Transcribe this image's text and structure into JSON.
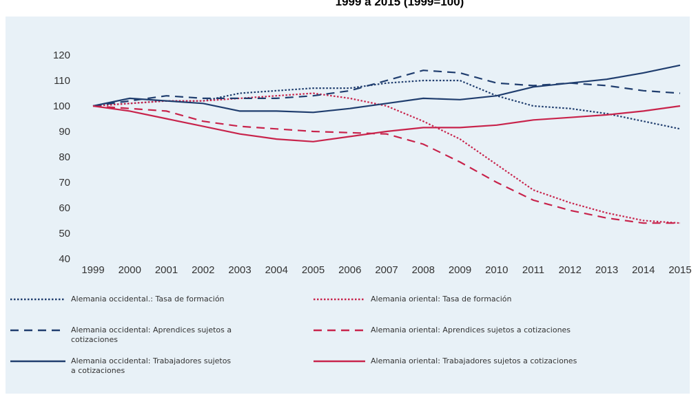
{
  "chart_data": {
    "type": "line",
    "title": "1999 a 2015 (1999=100)",
    "categories": [
      "1999",
      "2000",
      "2001",
      "2002",
      "2003",
      "2004",
      "2005",
      "2006",
      "2007",
      "2008",
      "2009",
      "2010",
      "2011",
      "2012",
      "2013",
      "2014",
      "2015"
    ],
    "ylim": [
      40,
      120
    ],
    "yticks": [
      40,
      50,
      60,
      70,
      80,
      90,
      100,
      110,
      120
    ],
    "grid": false,
    "series": [
      {
        "name": "Alemania occidental.: Tasa de formación",
        "color": "#1f3d6e",
        "style": "dotted",
        "values": [
          100,
          101,
          102,
          102,
          105,
          106,
          107,
          107,
          109,
          110,
          110,
          104,
          100,
          99,
          97,
          94,
          91
        ]
      },
      {
        "name": "Alemania oriental: Tasa de formación",
        "color": "#c8234b",
        "style": "dotted",
        "values": [
          100,
          101,
          102,
          102,
          103,
          104,
          105,
          103,
          100,
          94,
          87,
          77,
          67,
          62,
          58,
          55,
          54
        ]
      },
      {
        "name": "Alemania occidental: Aprendices sujetos a cotizaciones",
        "color": "#1f3d6e",
        "style": "dashed",
        "values": [
          100,
          102,
          104,
          103,
          103,
          103,
          104,
          106,
          110,
          114,
          113,
          109,
          108,
          109,
          108,
          106,
          105
        ]
      },
      {
        "name": "Alemania oriental: Aprendices sujetos a cotizaciones",
        "color": "#c8234b",
        "style": "dashed",
        "values": [
          100,
          99,
          98,
          94,
          92,
          91,
          90,
          89.5,
          89,
          85,
          78,
          70,
          63,
          59,
          56,
          54,
          54
        ]
      },
      {
        "name": "Alemania occidental: Trabajadores sujetos a cotizaciones",
        "color": "#1f3d6e",
        "style": "solid",
        "values": [
          100,
          103,
          102,
          101,
          98,
          98,
          97.5,
          99,
          101,
          103,
          102.5,
          104,
          107.5,
          109,
          110.5,
          113,
          116
        ]
      },
      {
        "name": "Alemania oriental: Trabajadores sujetos a cotizaciones",
        "color": "#c8234b",
        "style": "solid",
        "values": [
          100,
          98,
          95,
          92,
          89,
          87,
          86,
          88,
          90,
          91.5,
          91.5,
          92.5,
          94.5,
          95.5,
          96.5,
          98,
          100
        ]
      }
    ]
  }
}
